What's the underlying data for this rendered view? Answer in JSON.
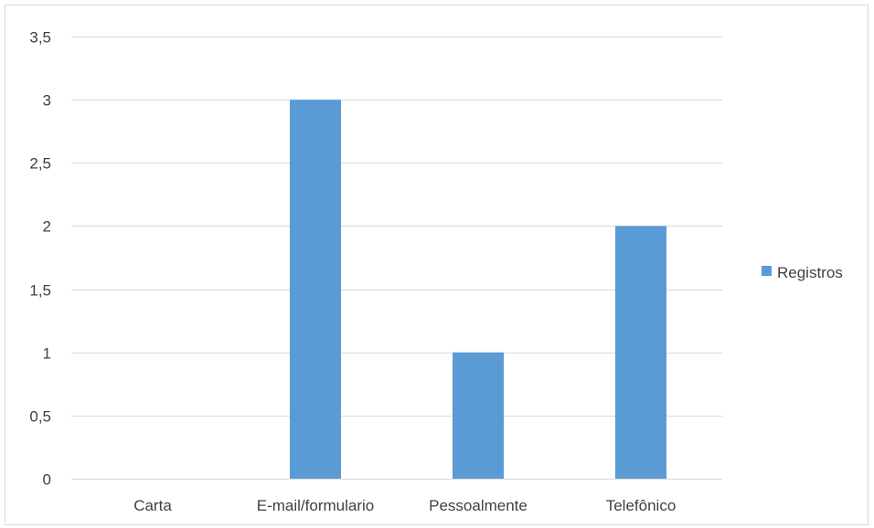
{
  "chart_data": {
    "type": "bar",
    "title": "",
    "xlabel": "",
    "ylabel": "",
    "categories": [
      "Carta",
      "E-mail/formulario",
      "Pessoalmente",
      "Telefônico"
    ],
    "series": [
      {
        "name": "Registros",
        "values": [
          0,
          3,
          1,
          2
        ],
        "color": "#5b9bd5"
      }
    ],
    "ylim": [
      0,
      3.5
    ],
    "yticks": [
      0,
      0.5,
      1,
      1.5,
      2,
      2.5,
      3,
      3.5
    ],
    "ytick_labels": [
      "0",
      "0,5",
      "1",
      "1,5",
      "2",
      "2,5",
      "3",
      "3,5"
    ],
    "grid": true,
    "legend_position": "right",
    "gridline_color": "#d9d9d9",
    "tick_label_color": "#404040"
  }
}
